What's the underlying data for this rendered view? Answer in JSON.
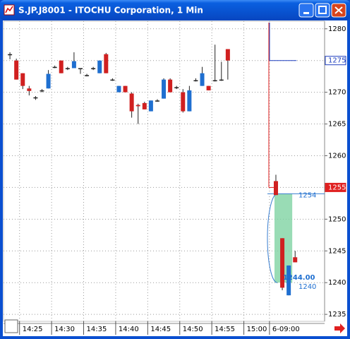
{
  "window_title": "S.JP.J8001 - ITOCHU Corporation, 1 Min",
  "chart_data": {
    "type": "candlestick",
    "x": [
      -1.5,
      -0.5,
      0.5,
      1.5,
      2.5,
      3.5,
      4.5,
      5.5,
      6.5,
      7.5,
      8.5,
      9.5,
      10.5,
      11.5,
      12.5,
      13.5,
      14.5,
      15.5,
      16.5,
      17.5,
      18.5,
      19.5,
      20.5,
      21.5,
      22.5,
      23.5,
      24.5,
      25.5,
      26.5,
      27.5,
      28.5,
      29.5,
      30.5,
      31.5,
      32.5,
      40,
      41,
      42,
      43
    ],
    "open": [
      1276,
      1275,
      1273,
      1270.6,
      1269.2,
      1270.3,
      1270.6,
      1274,
      1275,
      1273.8,
      1273.8,
      1273.8,
      1272.7,
      1273.8,
      1273,
      1276,
      1272,
      1270,
      1271,
      1269.8,
      1268,
      1268.3,
      1267,
      1268.7,
      1269,
      1272,
      1270.8,
      1270,
      1267,
      1271.9,
      1271,
      1271,
      1271.9,
      1272,
      1276.8,
      1256,
      1247,
      1238,
      1244
    ],
    "high": [
      1276.3,
      1275.3,
      1273,
      1271,
      1269.4,
      1270.5,
      1273.5,
      1274.2,
      1275,
      1274,
      1276.3,
      1273.8,
      1272.9,
      1274,
      1275,
      1276.2,
      1272.2,
      1271,
      1271,
      1270,
      1268.2,
      1268.5,
      1268.7,
      1268.9,
      1272.2,
      1272.2,
      1271,
      1270.5,
      1271,
      1272.2,
      1274,
      1271,
      1277.5,
      1274.8,
      1276.8,
      1257,
      1247,
      1242.7,
      1245
    ],
    "low": [
      1275.2,
      1272,
      1270.5,
      1269.5,
      1268.8,
      1270,
      1270.6,
      1273.8,
      1273,
      1273.5,
      1273.8,
      1272.9,
      1272.5,
      1273.5,
      1273,
      1273,
      1271.8,
      1270,
      1270,
      1266,
      1265,
      1267.3,
      1267,
      1268.5,
      1269,
      1270,
      1270.5,
      1266.8,
      1267,
      1271.7,
      1271,
      1270.3,
      1271.7,
      1271.8,
      1272,
      1253.8,
      1238.8,
      1238,
      1243.2
    ],
    "close": [
      1276,
      1272,
      1271,
      1270.2,
      1269.2,
      1270.3,
      1272.9,
      1274,
      1273,
      1273.8,
      1274.9,
      1273.8,
      1272.7,
      1273.8,
      1275,
      1273,
      1272,
      1271,
      1270,
      1267,
      1267.8,
      1267.3,
      1268.7,
      1268.7,
      1272,
      1270,
      1270.8,
      1267,
      1270.3,
      1271.9,
      1273,
      1270.3,
      1271.9,
      1272,
      1275,
      1253.8,
      1239.2,
      1242.7,
      1243.2
    ],
    "up_color": "#1f6fd0",
    "down_color": "#d02020",
    "flat_color": "#222222",
    "xlim": [
      -2.5,
      47.6
    ],
    "xticks": [
      {
        "value": 0,
        "label": "14:25"
      },
      {
        "value": 5,
        "label": "14:30"
      },
      {
        "value": 10,
        "label": "14:35"
      },
      {
        "value": 15,
        "label": "14:40"
      },
      {
        "value": 20,
        "label": "14:45"
      },
      {
        "value": 25,
        "label": "14:50"
      },
      {
        "value": 30,
        "label": "14:55"
      },
      {
        "value": 35,
        "label": "15:00"
      },
      {
        "value": 39,
        "label": "6-09:00"
      }
    ],
    "ylim": [
      1233.9,
      1281.2
    ],
    "yticks": [
      1235,
      1240,
      1245,
      1250,
      1255,
      1260,
      1265,
      1270,
      1275,
      1280
    ],
    "grid": true,
    "price_markers": [
      {
        "value": 1275,
        "label": "1275",
        "color": "#1f3fbf"
      },
      {
        "value": 1255,
        "label": "1255",
        "color": "#e02020"
      }
    ],
    "annotations": [
      {
        "value": 1254,
        "label": "1254"
      },
      {
        "value": 1244,
        "label": "1244.00"
      },
      {
        "value": 1240,
        "label": "1240"
      }
    ]
  }
}
